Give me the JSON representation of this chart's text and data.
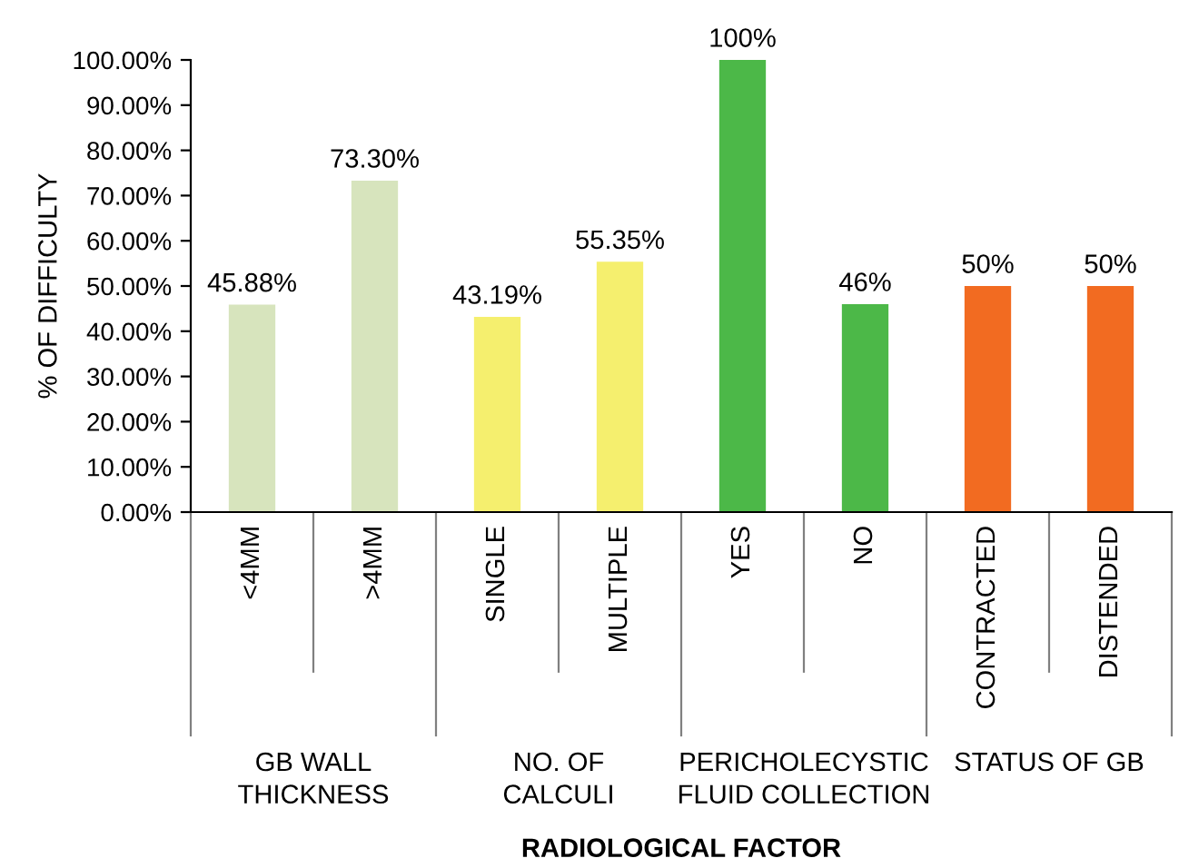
{
  "chart_data": {
    "type": "bar",
    "xlabel": "RADIOLOGICAL FACTOR",
    "ylabel": "% OF DIFFICULTY",
    "categories": [
      "<4MM",
      ">4MM",
      "SINGLE",
      "MULTIPLE",
      "YES",
      "NO",
      "CONTRACTED",
      "DISTENDED"
    ],
    "values": [
      45.88,
      73.3,
      43.19,
      55.35,
      100,
      46,
      50,
      50
    ],
    "colors": [
      "#d7e4bd",
      "#d7e4bd",
      "#f5ef6e",
      "#f5ef6e",
      "#4cb848",
      "#4cb848",
      "#f26b21",
      "#f26b21"
    ],
    "value_labels": [
      "45.88%",
      "73.30%",
      "43.19%",
      "55.35%",
      "100%",
      "46%",
      "50%",
      "50%"
    ],
    "annotations": [
      "GB WALL\nTHICKNESS",
      "NO. OF\nCALCULI",
      "PERICHOLECYSTIC\nFLUID COLLECTION",
      "STATUS OF GB"
    ],
    "ylim": [
      0,
      100
    ],
    "yticks": [
      {
        "value": 0,
        "label": "0.00%"
      },
      {
        "value": 10,
        "label": "10.00%"
      },
      {
        "value": 20,
        "label": "20.00%"
      },
      {
        "value": 30,
        "label": "30.00%"
      },
      {
        "value": 40,
        "label": "40.00%"
      },
      {
        "value": 50,
        "label": "50.00%"
      },
      {
        "value": 60,
        "label": "60.00%"
      },
      {
        "value": 70,
        "label": "70.00%"
      },
      {
        "value": 80,
        "label": "80.00%"
      },
      {
        "value": 90,
        "label": "90.00%"
      },
      {
        "value": 100,
        "label": "100.00%"
      }
    ],
    "grid": false
  }
}
